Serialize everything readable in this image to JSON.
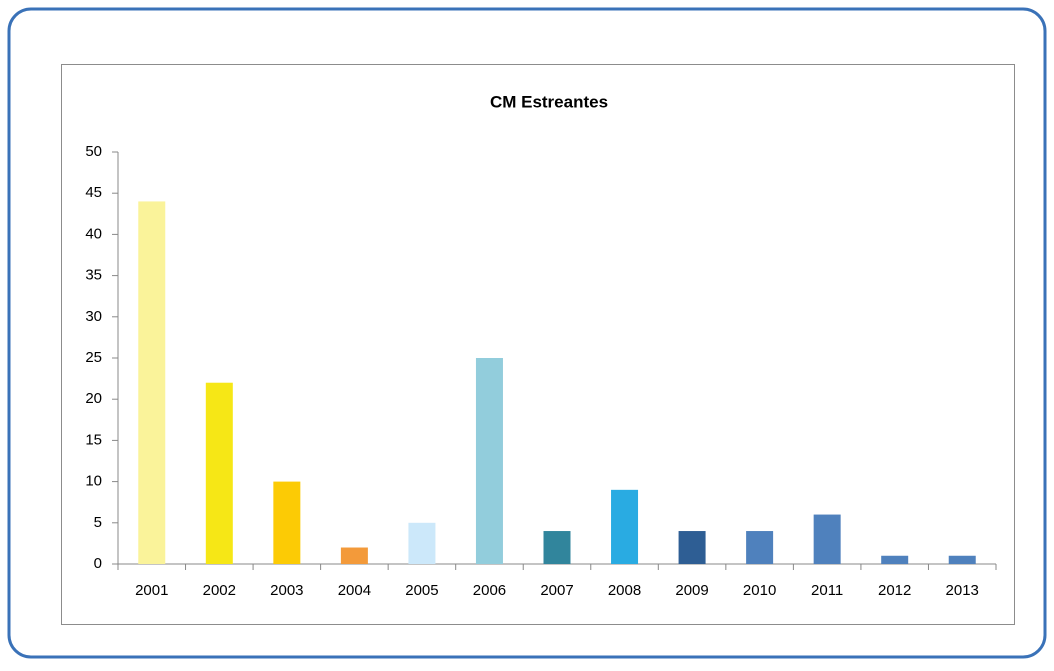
{
  "chart_data": {
    "type": "bar",
    "title": "CM Estreantes",
    "categories": [
      "2001",
      "2002",
      "2003",
      "2004",
      "2005",
      "2006",
      "2007",
      "2008",
      "2009",
      "2010",
      "2011",
      "2012",
      "2013"
    ],
    "values": [
      44,
      22,
      10,
      2,
      5,
      25,
      4,
      9,
      4,
      4,
      6,
      1,
      1
    ],
    "colors": [
      "#faf39a",
      "#f6e716",
      "#fccb05",
      "#f39a3a",
      "#cce8fa",
      "#92cddc",
      "#31859c",
      "#29abe2",
      "#2e5e94",
      "#4f81bd",
      "#4f81bd",
      "#4f81bd",
      "#4f81bd"
    ],
    "ylim": [
      0,
      50
    ],
    "yticks": [
      0,
      5,
      10,
      15,
      20,
      25,
      30,
      35,
      40,
      45,
      50
    ],
    "grid": false
  }
}
